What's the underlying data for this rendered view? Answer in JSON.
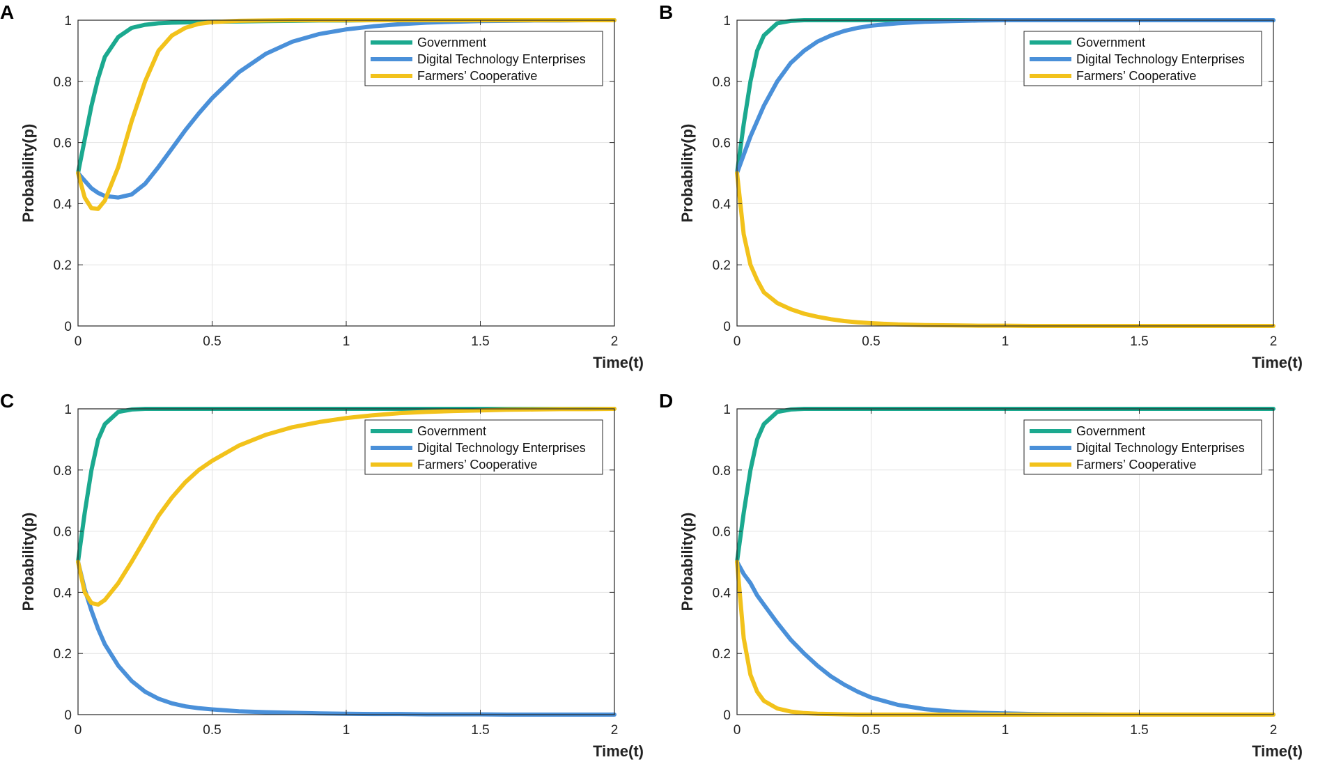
{
  "colors": {
    "government": "#1ba98f",
    "digital": "#4a90d9",
    "farmers": "#f2c21b"
  },
  "chart_data": [
    {
      "panel": "A",
      "type": "line",
      "xlabel": "Time(t)",
      "ylabel": "Probability(p)",
      "xlim": [
        0,
        2
      ],
      "ylim": [
        0,
        1
      ],
      "xticks": [
        0,
        0.5,
        1,
        1.5,
        2
      ],
      "xtick_labels": [
        "0",
        "0.5",
        "1",
        "1.5",
        "2"
      ],
      "yticks": [
        0,
        0.2,
        0.4,
        0.6,
        0.8,
        1
      ],
      "ytick_labels": [
        "0",
        "0.2",
        "0.4",
        "0.6",
        "0.8",
        "1"
      ],
      "grid": true,
      "legend_position": "top-right",
      "x": [
        0,
        0.025,
        0.05,
        0.075,
        0.1,
        0.15,
        0.2,
        0.25,
        0.3,
        0.35,
        0.4,
        0.45,
        0.5,
        0.6,
        0.7,
        0.8,
        0.9,
        1.0,
        1.1,
        1.2,
        1.3,
        1.4,
        1.5,
        1.6,
        1.7,
        1.8,
        1.9,
        2.0
      ],
      "series": [
        {
          "name": "Government",
          "color_key": "government",
          "values": [
            0.5,
            0.61,
            0.72,
            0.81,
            0.88,
            0.945,
            0.975,
            0.985,
            0.99,
            0.992,
            0.993,
            0.994,
            0.995,
            0.996,
            0.997,
            0.998,
            0.999,
            0.999,
            1,
            1,
            1,
            1,
            1,
            1,
            1,
            1,
            1,
            1
          ]
        },
        {
          "name": "Digital Technology Enterprises",
          "color_key": "digital",
          "values": [
            0.5,
            0.475,
            0.45,
            0.435,
            0.425,
            0.42,
            0.43,
            0.465,
            0.52,
            0.58,
            0.64,
            0.695,
            0.745,
            0.83,
            0.89,
            0.93,
            0.955,
            0.97,
            0.98,
            0.987,
            0.992,
            0.995,
            0.997,
            0.998,
            0.999,
            0.999,
            1,
            1
          ]
        },
        {
          "name": "Farmers’ Cooperative",
          "color_key": "farmers",
          "values": [
            0.5,
            0.42,
            0.385,
            0.383,
            0.41,
            0.52,
            0.67,
            0.8,
            0.9,
            0.95,
            0.975,
            0.988,
            0.994,
            0.998,
            0.999,
            1,
            1,
            1,
            1,
            1,
            1,
            1,
            1,
            1,
            1,
            1,
            1,
            1
          ]
        }
      ]
    },
    {
      "panel": "B",
      "type": "line",
      "xlabel": "Time(t)",
      "ylabel": "Probability(p)",
      "xlim": [
        0,
        2
      ],
      "ylim": [
        0,
        1
      ],
      "xticks": [
        0,
        0.5,
        1,
        1.5,
        2
      ],
      "xtick_labels": [
        "0",
        "0.5",
        "1",
        "1.5",
        "2"
      ],
      "yticks": [
        0,
        0.2,
        0.4,
        0.6,
        0.8,
        1
      ],
      "ytick_labels": [
        "0",
        "0.2",
        "0.4",
        "0.6",
        "0.8",
        "1"
      ],
      "grid": true,
      "legend_position": "top-right",
      "x": [
        0,
        0.025,
        0.05,
        0.075,
        0.1,
        0.15,
        0.2,
        0.25,
        0.3,
        0.35,
        0.4,
        0.45,
        0.5,
        0.6,
        0.7,
        0.8,
        0.9,
        1.0,
        1.1,
        1.2,
        1.3,
        1.4,
        1.5,
        1.6,
        1.7,
        1.8,
        1.9,
        2.0
      ],
      "series": [
        {
          "name": "Government",
          "color_key": "government",
          "values": [
            0.5,
            0.66,
            0.8,
            0.9,
            0.95,
            0.99,
            0.998,
            1,
            1,
            1,
            1,
            1,
            1,
            1,
            1,
            1,
            1,
            1,
            1,
            1,
            1,
            1,
            1,
            1,
            1,
            1,
            1,
            1
          ]
        },
        {
          "name": "Digital Technology Enterprises",
          "color_key": "digital",
          "values": [
            0.5,
            0.56,
            0.62,
            0.67,
            0.72,
            0.8,
            0.86,
            0.9,
            0.93,
            0.95,
            0.965,
            0.975,
            0.982,
            0.99,
            0.995,
            0.997,
            0.999,
            1,
            1,
            1,
            1,
            1,
            1,
            1,
            1,
            1,
            1,
            1
          ]
        },
        {
          "name": "Farmers’ Cooperative",
          "color_key": "farmers",
          "values": [
            0.5,
            0.3,
            0.2,
            0.15,
            0.11,
            0.075,
            0.055,
            0.04,
            0.03,
            0.022,
            0.016,
            0.012,
            0.009,
            0.005,
            0.003,
            0.002,
            0.001,
            0.001,
            0,
            0,
            0,
            0,
            0,
            0,
            0,
            0,
            0,
            0
          ]
        }
      ]
    },
    {
      "panel": "C",
      "type": "line",
      "xlabel": "Time(t)",
      "ylabel": "Probability(p)",
      "xlim": [
        0,
        2
      ],
      "ylim": [
        0,
        1
      ],
      "xticks": [
        0,
        0.5,
        1,
        1.5,
        2
      ],
      "xtick_labels": [
        "0",
        "0.5",
        "1",
        "1.5",
        "2"
      ],
      "yticks": [
        0,
        0.2,
        0.4,
        0.6,
        0.8,
        1
      ],
      "ytick_labels": [
        "0",
        "0.2",
        "0.4",
        "0.6",
        "0.8",
        "1"
      ],
      "grid": true,
      "legend_position": "top-right",
      "x": [
        0,
        0.025,
        0.05,
        0.075,
        0.1,
        0.15,
        0.2,
        0.25,
        0.3,
        0.35,
        0.4,
        0.45,
        0.5,
        0.6,
        0.7,
        0.8,
        0.9,
        1.0,
        1.1,
        1.2,
        1.3,
        1.4,
        1.5,
        1.6,
        1.7,
        1.8,
        1.9,
        2.0
      ],
      "series": [
        {
          "name": "Government",
          "color_key": "government",
          "values": [
            0.5,
            0.66,
            0.8,
            0.9,
            0.95,
            0.99,
            0.998,
            1,
            1,
            1,
            1,
            1,
            1,
            1,
            1,
            1,
            1,
            1,
            1,
            1,
            1,
            1,
            1,
            1,
            1,
            1,
            1,
            1
          ]
        },
        {
          "name": "Digital Technology Enterprises",
          "color_key": "digital",
          "values": [
            0.5,
            0.41,
            0.34,
            0.28,
            0.23,
            0.16,
            0.11,
            0.075,
            0.052,
            0.037,
            0.027,
            0.021,
            0.017,
            0.011,
            0.008,
            0.006,
            0.004,
            0.003,
            0.002,
            0.002,
            0.001,
            0.001,
            0.001,
            0,
            0,
            0,
            0,
            0
          ]
        },
        {
          "name": "Farmers’ Cooperative",
          "color_key": "farmers",
          "values": [
            0.5,
            0.4,
            0.365,
            0.36,
            0.375,
            0.43,
            0.5,
            0.575,
            0.65,
            0.71,
            0.76,
            0.8,
            0.83,
            0.88,
            0.915,
            0.94,
            0.957,
            0.97,
            0.979,
            0.986,
            0.99,
            0.993,
            0.995,
            0.997,
            0.998,
            0.999,
            0.999,
            1
          ]
        }
      ]
    },
    {
      "panel": "D",
      "type": "line",
      "xlabel": "Time(t)",
      "ylabel": "Probability(p)",
      "xlim": [
        0,
        2
      ],
      "ylim": [
        0,
        1
      ],
      "xticks": [
        0,
        0.5,
        1,
        1.5,
        2
      ],
      "xtick_labels": [
        "0",
        "0.5",
        "1",
        "1.5",
        "2"
      ],
      "yticks": [
        0,
        0.2,
        0.4,
        0.6,
        0.8,
        1
      ],
      "ytick_labels": [
        "0",
        "0.2",
        "0.4",
        "0.6",
        "0.8",
        "1"
      ],
      "grid": true,
      "legend_position": "top-right",
      "x": [
        0,
        0.025,
        0.05,
        0.075,
        0.1,
        0.15,
        0.2,
        0.25,
        0.3,
        0.35,
        0.4,
        0.45,
        0.5,
        0.6,
        0.7,
        0.8,
        0.9,
        1.0,
        1.1,
        1.2,
        1.3,
        1.4,
        1.5,
        1.6,
        1.7,
        1.8,
        1.9,
        2.0
      ],
      "series": [
        {
          "name": "Government",
          "color_key": "government",
          "values": [
            0.5,
            0.66,
            0.8,
            0.9,
            0.95,
            0.99,
            0.998,
            1,
            1,
            1,
            1,
            1,
            1,
            1,
            1,
            1,
            1,
            1,
            1,
            1,
            1,
            1,
            1,
            1,
            1,
            1,
            1,
            1
          ]
        },
        {
          "name": "Digital Technology Enterprises",
          "color_key": "digital",
          "values": [
            0.5,
            0.46,
            0.43,
            0.39,
            0.36,
            0.3,
            0.245,
            0.2,
            0.16,
            0.125,
            0.098,
            0.075,
            0.056,
            0.032,
            0.018,
            0.01,
            0.006,
            0.004,
            0.002,
            0.001,
            0.001,
            0,
            0,
            0,
            0,
            0,
            0,
            0
          ]
        },
        {
          "name": "Farmers’ Cooperative",
          "color_key": "farmers",
          "values": [
            0.5,
            0.25,
            0.13,
            0.075,
            0.045,
            0.02,
            0.01,
            0.005,
            0.003,
            0.002,
            0.001,
            0,
            0,
            0,
            0,
            0,
            0,
            0,
            0,
            0,
            0,
            0,
            0,
            0,
            0,
            0,
            0,
            0
          ]
        }
      ]
    }
  ]
}
